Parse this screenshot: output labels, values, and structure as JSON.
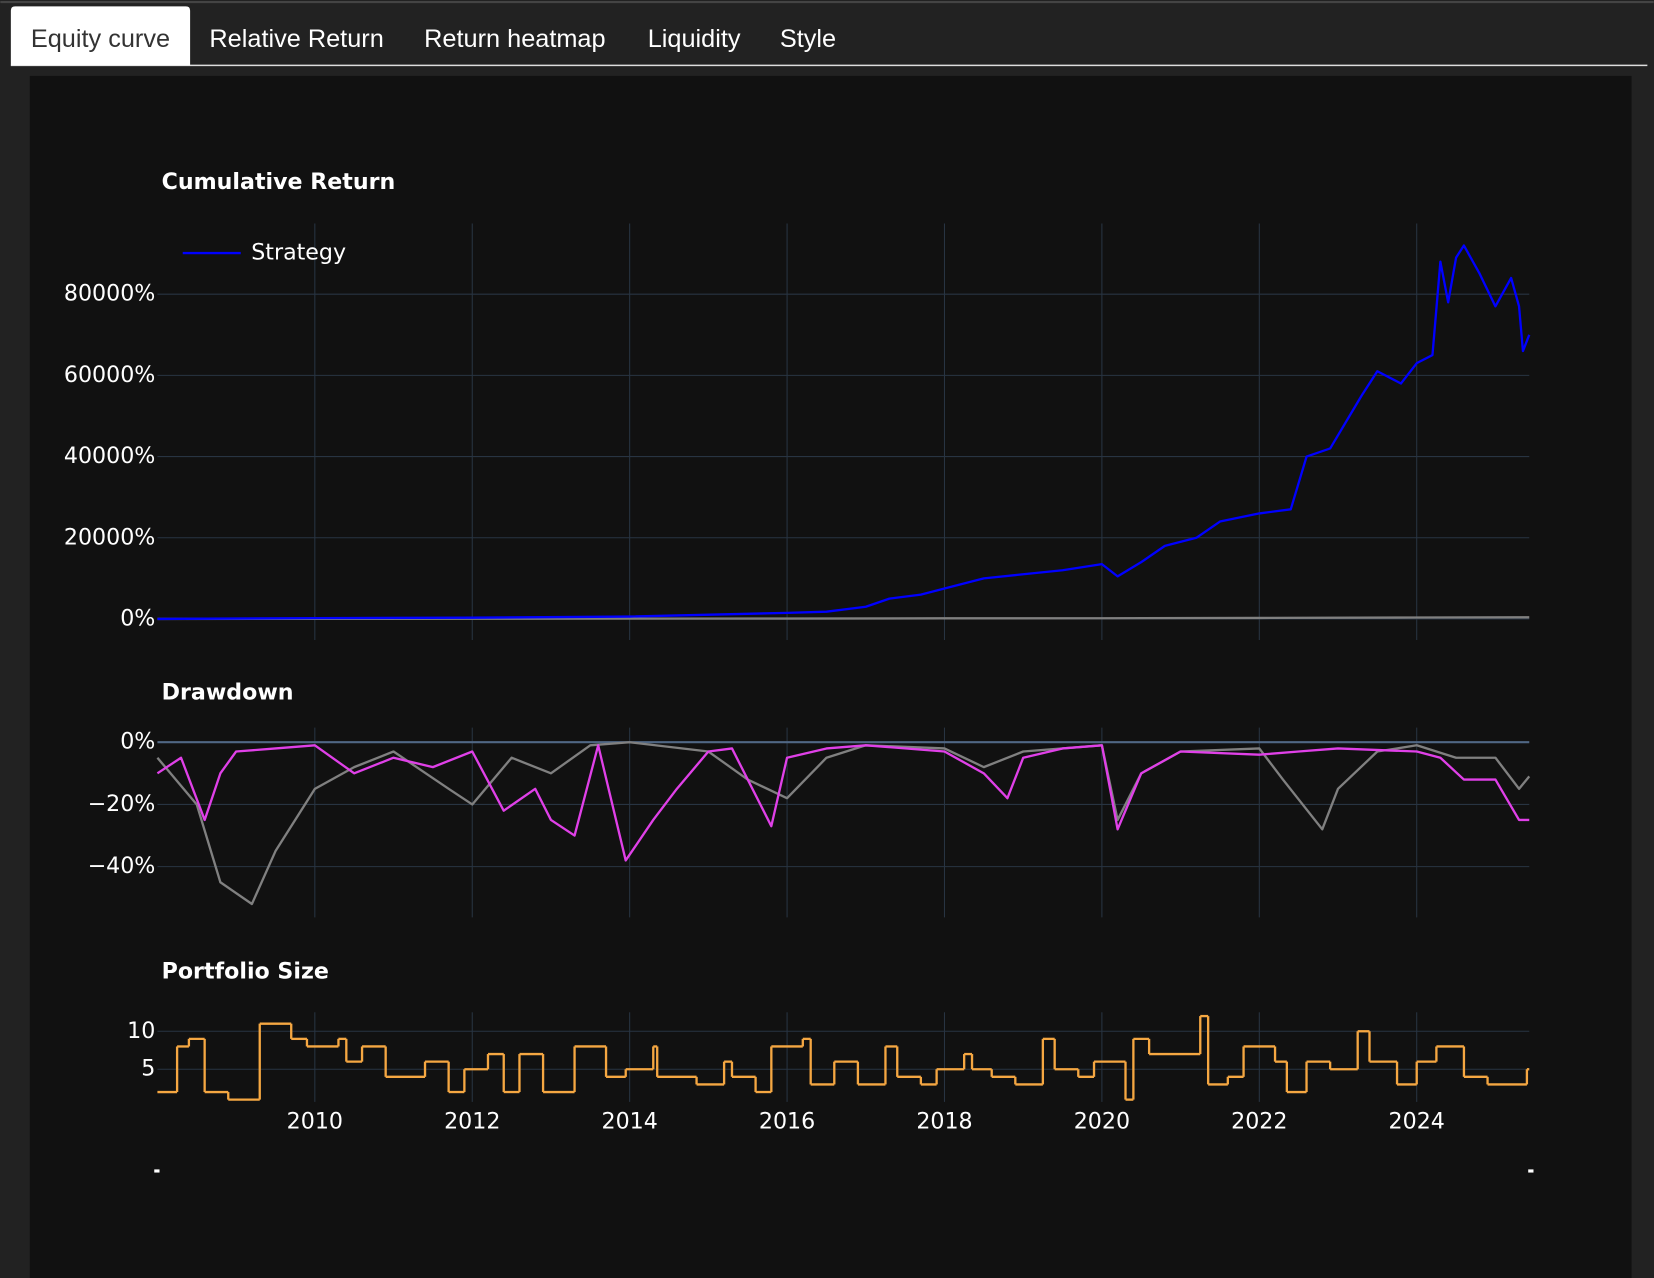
{
  "tabs": [
    "Equity curve",
    "Relative Return",
    "Return heatmap",
    "Liquidity",
    "Style"
  ],
  "chart_data": [
    {
      "type": "line",
      "title": "Cumulative Return",
      "legend": "top-left",
      "xlim": [
        2008,
        2025.43
      ],
      "ylim": [
        -5200,
        97400
      ],
      "yticks": [
        {
          "value": 0,
          "label": "0%"
        },
        {
          "value": 20000,
          "label": "20000%"
        },
        {
          "value": 40000,
          "label": "40000%"
        },
        {
          "value": 60000,
          "label": "60000%"
        },
        {
          "value": 80000,
          "label": "80000%"
        }
      ],
      "series": [
        {
          "color": "#808080",
          "x": [
            2008,
            2010,
            2012,
            2014,
            2016,
            2018,
            2020,
            2022,
            2024,
            2025.43
          ],
          "values": [
            0,
            20,
            40,
            80,
            100,
            150,
            180,
            250,
            350,
            420
          ]
        },
        {
          "name": "Strategy",
          "color": "#0000ff",
          "x": [
            2008,
            2010,
            2012,
            2014,
            2016,
            2016.5,
            2017,
            2017.3,
            2017.7,
            2018,
            2018.5,
            2019,
            2019.5,
            2020,
            2020.2,
            2020.5,
            2020.8,
            2021.2,
            2021.5,
            2022,
            2022.4,
            2022.6,
            2022.9,
            2023.3,
            2023.5,
            2023.8,
            2024,
            2024.2,
            2024.3,
            2024.4,
            2024.5,
            2024.6,
            2024.8,
            2025.0,
            2025.2,
            2025.3,
            2025.35,
            2025.43
          ],
          "values": [
            0,
            200,
            300,
            600,
            1500,
            1800,
            3000,
            5000,
            6000,
            7500,
            10000,
            11000,
            12000,
            13500,
            10500,
            14000,
            18000,
            20000,
            24000,
            26000,
            27000,
            40000,
            42000,
            55000,
            61000,
            58000,
            63000,
            65000,
            88000,
            78000,
            89000,
            92000,
            85000,
            77000,
            84000,
            77000,
            66000,
            70000
          ]
        }
      ]
    },
    {
      "type": "line",
      "title": "Drawdown",
      "xlim": [
        2008,
        2025.43
      ],
      "ylim": [
        -56.3,
        4.7
      ],
      "yticks": [
        {
          "value": 0,
          "label": "0%"
        },
        {
          "value": -20,
          "label": "−20%"
        },
        {
          "value": -40,
          "label": "−40%"
        }
      ],
      "series": [
        {
          "color": "#808080",
          "x": [
            2008,
            2008.5,
            2008.8,
            2009.2,
            2009.5,
            2010,
            2010.5,
            2011,
            2011.7,
            2012,
            2012.5,
            2013,
            2013.5,
            2014,
            2015,
            2015.5,
            2016,
            2016.5,
            2017,
            2018,
            2018.5,
            2019,
            2020,
            2020.2,
            2020.5,
            2021,
            2022,
            2022.3,
            2022.8,
            2023,
            2023.5,
            2024,
            2024.5,
            2025,
            2025.3,
            2025.43
          ],
          "values": [
            -5,
            -20,
            -45,
            -52,
            -35,
            -15,
            -8,
            -3,
            -15,
            -20,
            -5,
            -10,
            -1,
            0,
            -3,
            -12,
            -18,
            -5,
            -1,
            -2,
            -8,
            -3,
            -1,
            -25,
            -10,
            -3,
            -2,
            -12,
            -28,
            -15,
            -3,
            -1,
            -5,
            -5,
            -15,
            -11
          ]
        },
        {
          "color": "#e040e8",
          "x": [
            2008,
            2008.3,
            2008.6,
            2008.8,
            2009,
            2009.5,
            2010,
            2010.5,
            2011,
            2011.5,
            2012,
            2012.4,
            2012.8,
            2013,
            2013.3,
            2013.6,
            2013.95,
            2014.3,
            2014.6,
            2015,
            2015.3,
            2015.8,
            2016,
            2016.5,
            2017,
            2018,
            2018.5,
            2018.8,
            2019,
            2019.5,
            2020,
            2020.2,
            2020.5,
            2021,
            2022,
            2022.5,
            2023,
            2024,
            2024.3,
            2024.6,
            2025,
            2025.3,
            2025.43
          ],
          "values": [
            -10,
            -5,
            -25,
            -10,
            -3,
            -2,
            -1,
            -10,
            -5,
            -8,
            -3,
            -22,
            -15,
            -25,
            -30,
            -1,
            -38,
            -25,
            -15,
            -3,
            -2,
            -27,
            -5,
            -2,
            -1,
            -3,
            -10,
            -18,
            -5,
            -2,
            -1,
            -28,
            -10,
            -3,
            -4,
            -3,
            -2,
            -3,
            -5,
            -12,
            -12,
            -25,
            -25
          ]
        }
      ]
    },
    {
      "type": "step",
      "title": "Portfolio Size",
      "xlim": [
        2008,
        2025.43
      ],
      "ylim": [
        0.7,
        12.5
      ],
      "xticks": [
        2010,
        2012,
        2014,
        2016,
        2018,
        2020,
        2022,
        2024
      ],
      "yticks": [
        5,
        10
      ],
      "series": [
        {
          "color": "#f5a742",
          "x": [
            2008.0,
            2008.25,
            2008.4,
            2008.6,
            2008.9,
            2009.3,
            2009.7,
            2009.9,
            2010.3,
            2010.4,
            2010.6,
            2010.9,
            2011.4,
            2011.7,
            2011.9,
            2012.2,
            2012.4,
            2012.6,
            2012.9,
            2013.3,
            2013.7,
            2013.95,
            2014.3,
            2014.35,
            2014.85,
            2015.2,
            2015.3,
            2015.6,
            2015.8,
            2016.2,
            2016.3,
            2016.6,
            2016.9,
            2017.25,
            2017.4,
            2017.7,
            2017.9,
            2018.25,
            2018.35,
            2018.6,
            2018.9,
            2019.25,
            2019.4,
            2019.7,
            2019.9,
            2020.3,
            2020.4,
            2020.6,
            2021.25,
            2021.35,
            2021.6,
            2021.8,
            2022.2,
            2022.35,
            2022.6,
            2022.9,
            2023.25,
            2023.4,
            2023.75,
            2024.0,
            2024.25,
            2024.6,
            2024.9,
            2025.4
          ],
          "values": [
            2,
            8,
            9,
            2,
            1,
            11,
            9,
            8,
            9,
            6,
            8,
            4,
            6,
            2,
            5,
            7,
            2,
            7,
            2,
            8,
            4,
            5,
            8,
            4,
            3,
            6,
            4,
            2,
            8,
            9,
            3,
            6,
            3,
            8,
            4,
            3,
            5,
            7,
            5,
            4,
            3,
            9,
            5,
            4,
            6,
            1,
            9,
            7,
            12,
            3,
            4,
            8,
            6,
            2,
            6,
            5,
            10,
            6,
            3,
            6,
            8,
            4,
            3,
            5
          ]
        }
      ]
    }
  ]
}
